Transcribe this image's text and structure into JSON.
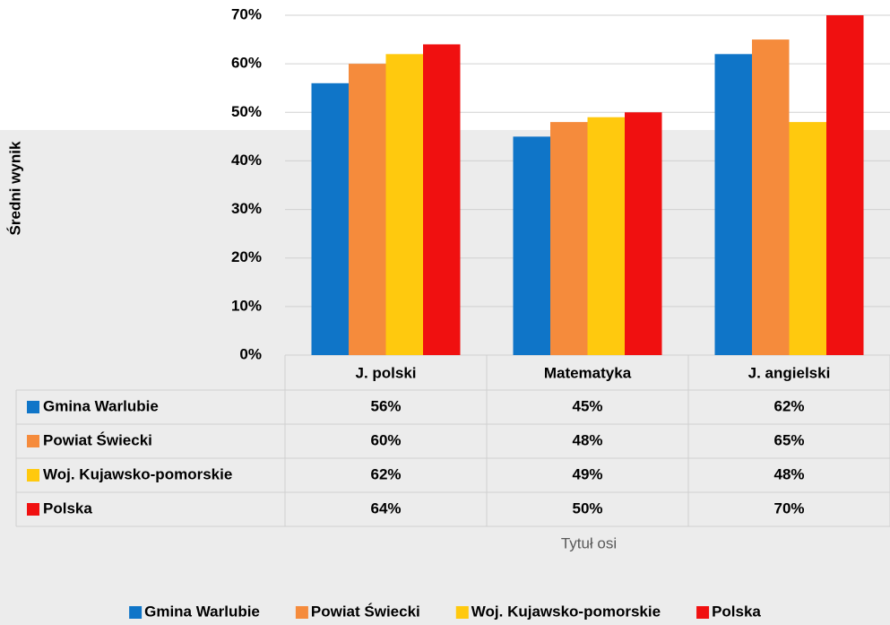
{
  "chart_data": {
    "type": "bar",
    "y_axis_label": "Średni wynik",
    "x_axis_label": "Tytuł osi",
    "categories": [
      "J. polski",
      "Matematyka",
      "J. angielski"
    ],
    "series": [
      {
        "name": "Gmina Warlubie",
        "color": "#0f75c8",
        "values": [
          56,
          45,
          62
        ],
        "value_labels": [
          "56%",
          "45%",
          "62%"
        ]
      },
      {
        "name": "Powiat Świecki",
        "color": "#f58b3c",
        "values": [
          60,
          48,
          65
        ],
        "value_labels": [
          "60%",
          "48%",
          "65%"
        ]
      },
      {
        "name": "Woj. Kujawsko-pomorskie",
        "color": "#ffc90e",
        "values": [
          62,
          49,
          48
        ],
        "value_labels": [
          "62%",
          "49%",
          "48%"
        ]
      },
      {
        "name": "Polska",
        "color": "#f01010",
        "values": [
          64,
          50,
          70
        ],
        "value_labels": [
          "64%",
          "50%",
          "70%"
        ]
      }
    ],
    "ylim": [
      0,
      70
    ],
    "yticks": [
      {
        "value": 0,
        "label": "0%"
      },
      {
        "value": 10,
        "label": "10%"
      },
      {
        "value": 20,
        "label": "20%"
      },
      {
        "value": 30,
        "label": "30%"
      },
      {
        "value": 40,
        "label": "40%"
      },
      {
        "value": 50,
        "label": "50%"
      },
      {
        "value": 60,
        "label": "60%"
      },
      {
        "value": 70,
        "label": "70%"
      }
    ],
    "grid": true,
    "legend": "bottom"
  }
}
